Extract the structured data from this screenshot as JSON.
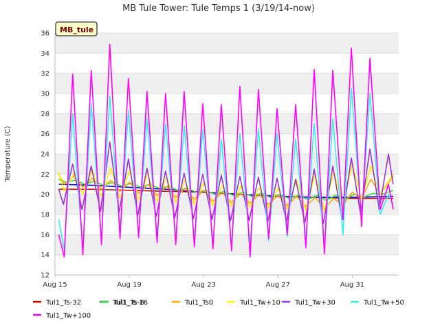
{
  "chart_data": {
    "type": "line",
    "title": "MB Tule Tower: Tule Temps 1 (3/19/14-now)",
    "site_label": "MB_tule",
    "xlabel": "",
    "ylabel": "Temperature (C)",
    "ylim": [
      12,
      36
    ],
    "yticks": [
      12,
      14,
      16,
      18,
      20,
      22,
      24,
      26,
      28,
      30,
      32,
      34,
      36
    ],
    "xlim_days": [
      15,
      33.5
    ],
    "xticks": [
      {
        "label": "Aug 15",
        "day": 15
      },
      {
        "label": "Aug 19",
        "day": 19
      },
      {
        "label": "Aug 23",
        "day": 23
      },
      {
        "label": "Aug 27",
        "day": 27
      },
      {
        "label": "Aug 31",
        "day": 31
      }
    ],
    "grid": true,
    "legend_placement": "bottom",
    "colors": {
      "band": "#efefef",
      "plot_bg": "#ffffff",
      "grid": "#dddddd",
      "axis": "#bbbbbb",
      "site_label_bg": "#ffffcc"
    },
    "series": [
      {
        "name": "Tul1_Ts-32",
        "color": "#dd0000",
        "x": [
          15.2,
          17,
          19,
          21,
          23,
          25,
          27,
          29,
          31,
          33.2
        ],
        "y": [
          20.5,
          20.5,
          20.4,
          20.3,
          20.2,
          20.0,
          19.8,
          19.7,
          19.6,
          19.6
        ]
      },
      {
        "name": "Tul1_Ts-16",
        "color": "#0000cc",
        "x": [
          15.2,
          17,
          19,
          21,
          23,
          25,
          27,
          29,
          31,
          33.2
        ],
        "y": [
          21.0,
          20.9,
          20.7,
          20.5,
          20.2,
          20.0,
          19.8,
          19.7,
          19.7,
          19.8
        ]
      },
      {
        "name": "Tul1_Ts-8",
        "color": "#33dd33",
        "x": [
          15.2,
          15.6,
          16.1,
          16.6,
          17.1,
          17.6,
          18.1,
          18.6,
          19.1,
          19.6,
          20.1,
          20.6,
          21.1,
          21.6,
          22.1,
          22.6,
          23.1,
          23.6,
          24.1,
          24.6,
          25.1,
          25.6,
          26.1,
          26.6,
          27.1,
          27.6,
          28.1,
          28.6,
          29.1,
          29.6,
          30.1,
          30.6,
          31.1,
          31.6,
          32.1,
          32.6,
          33.2
        ],
        "y": [
          21.5,
          21.2,
          21.4,
          21.0,
          21.3,
          20.9,
          21.2,
          20.8,
          21.1,
          20.7,
          21.0,
          20.6,
          20.8,
          20.4,
          20.6,
          20.2,
          20.4,
          20.0,
          20.3,
          19.9,
          20.2,
          19.8,
          20.1,
          19.7,
          20.0,
          19.6,
          19.9,
          19.5,
          19.9,
          19.4,
          19.9,
          19.5,
          20.0,
          19.7,
          20.1,
          20.0,
          20.4
        ]
      },
      {
        "name": "Tul1_Ts0",
        "color": "#ffa500",
        "x": [
          15.2,
          15.5,
          16.0,
          16.5,
          17.0,
          17.5,
          18.0,
          18.5,
          19.0,
          19.5,
          20.0,
          20.5,
          21.0,
          21.5,
          22.0,
          22.5,
          23.0,
          23.5,
          24.0,
          24.5,
          25.0,
          25.5,
          26.0,
          26.5,
          27.0,
          27.5,
          28.0,
          28.5,
          29.0,
          29.5,
          30.0,
          30.5,
          31.0,
          31.5,
          32.0,
          32.5,
          33.2
        ],
        "y": [
          22.0,
          21.0,
          21.8,
          20.7,
          21.6,
          20.5,
          21.4,
          20.3,
          21.2,
          20.1,
          21.0,
          19.9,
          20.8,
          19.7,
          20.6,
          19.5,
          20.4,
          19.3,
          20.2,
          19.2,
          20.1,
          19.1,
          20.0,
          19.0,
          19.9,
          18.9,
          19.8,
          18.8,
          19.7,
          18.6,
          19.6,
          18.9,
          20.2,
          19.6,
          21.5,
          20.0,
          21.8
        ]
      },
      {
        "name": "Tul1_Tw+10",
        "color": "#ffee00",
        "x": [
          15.2,
          15.5,
          16.0,
          16.5,
          17.0,
          17.5,
          18.0,
          18.5,
          19.0,
          19.5,
          20.0,
          20.5,
          21.0,
          21.5,
          22.0,
          22.5,
          23.0,
          23.5,
          24.0,
          24.5,
          25.0,
          25.5,
          26.0,
          26.5,
          27.0,
          27.5,
          28.0,
          28.5,
          29.0,
          29.5,
          30.0,
          30.5,
          31.0,
          31.5,
          32.0,
          32.5,
          33.2
        ],
        "y": [
          22.2,
          20.3,
          22.0,
          20.0,
          22.4,
          19.8,
          22.6,
          19.6,
          22.3,
          19.4,
          22.0,
          19.3,
          21.7,
          19.2,
          21.4,
          19.0,
          21.1,
          18.9,
          20.9,
          18.8,
          20.8,
          18.7,
          20.7,
          18.6,
          20.6,
          18.5,
          21.5,
          18.4,
          22.0,
          18.3,
          22.3,
          18.8,
          23.0,
          19.5,
          22.8,
          20.0,
          22.0
        ]
      },
      {
        "name": "Tul1_Tw+30",
        "color": "#9933cc",
        "x": [
          15.2,
          15.45,
          15.95,
          16.45,
          16.95,
          17.45,
          17.95,
          18.45,
          18.95,
          19.45,
          19.95,
          20.45,
          20.95,
          21.45,
          21.95,
          22.45,
          22.95,
          23.45,
          23.95,
          24.45,
          24.95,
          25.45,
          25.95,
          26.45,
          26.95,
          27.45,
          27.95,
          28.45,
          28.95,
          29.45,
          29.95,
          30.45,
          30.95,
          31.45,
          31.95,
          32.45,
          32.95,
          33.2
        ],
        "y": [
          20.5,
          19.0,
          23.0,
          18.5,
          22.8,
          18.3,
          25.2,
          18.2,
          23.5,
          17.9,
          22.6,
          17.8,
          22.3,
          17.7,
          22.1,
          17.6,
          22.0,
          17.5,
          21.9,
          17.4,
          21.8,
          17.4,
          21.7,
          17.3,
          21.6,
          17.3,
          21.5,
          17.2,
          22.5,
          17.1,
          22.8,
          17.5,
          23.6,
          18.0,
          24.5,
          18.5,
          24.0,
          21.0
        ]
      },
      {
        "name": "Tul1_Tw+50",
        "color": "#33eeee",
        "x": [
          15.2,
          15.5,
          15.95,
          16.5,
          16.95,
          17.5,
          17.95,
          18.5,
          18.95,
          19.5,
          19.95,
          20.5,
          20.95,
          21.5,
          21.95,
          22.5,
          22.95,
          23.5,
          23.95,
          24.5,
          24.95,
          25.5,
          25.95,
          26.5,
          26.95,
          27.5,
          27.95,
          28.5,
          28.95,
          29.5,
          29.95,
          30.5,
          30.95,
          31.5,
          31.95,
          32.5,
          32.95,
          33.2
        ],
        "y": [
          17.5,
          14.5,
          28.0,
          14.5,
          29.0,
          15.5,
          29.8,
          16.0,
          28.3,
          16.0,
          27.5,
          15.8,
          27.0,
          15.6,
          26.8,
          15.4,
          26.4,
          15.2,
          25.5,
          15.0,
          26.0,
          15.0,
          26.5,
          15.4,
          26.0,
          15.8,
          25.5,
          15.6,
          27.0,
          14.5,
          27.5,
          16.0,
          30.5,
          17.5,
          30.0,
          18.0,
          20.0,
          19.0
        ]
      },
      {
        "name": "Tul1_Tw+100",
        "color": "#ff00ff",
        "x": [
          15.2,
          15.5,
          15.95,
          16.5,
          16.95,
          17.5,
          17.95,
          18.5,
          18.95,
          19.5,
          19.95,
          20.5,
          20.95,
          21.5,
          21.95,
          22.5,
          22.95,
          23.5,
          23.95,
          24.5,
          24.95,
          25.5,
          25.95,
          26.5,
          26.95,
          27.5,
          27.95,
          28.5,
          28.95,
          29.5,
          29.95,
          30.5,
          30.95,
          31.5,
          31.95,
          32.5,
          32.95,
          33.2
        ],
        "y": [
          16.0,
          13.8,
          31.9,
          14.0,
          32.3,
          15.0,
          34.9,
          15.6,
          31.5,
          15.7,
          30.2,
          15.2,
          30.0,
          15.0,
          30.2,
          14.8,
          29.0,
          14.6,
          28.9,
          14.4,
          30.7,
          13.8,
          30.4,
          15.6,
          28.5,
          16.0,
          28.9,
          14.7,
          32.4,
          14.1,
          32.3,
          17.5,
          34.5,
          16.8,
          33.5,
          18.5,
          21.0,
          18.5
        ]
      }
    ]
  }
}
